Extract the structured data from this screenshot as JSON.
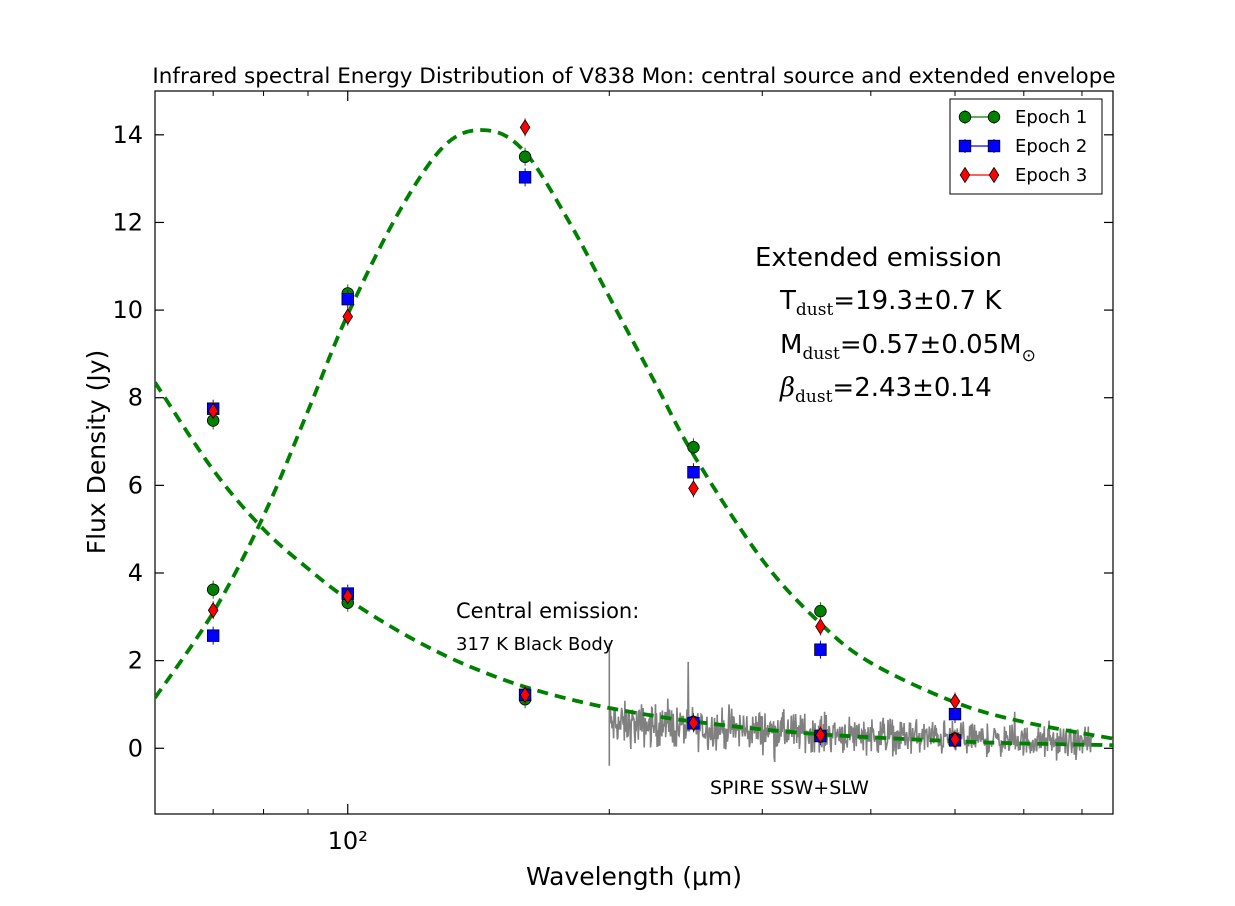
{
  "chart_data": {
    "type": "scatter",
    "title": "Infrared spectral Energy Distribution of V838 Mon: central source and extended envelope",
    "xlabel": "Wavelength (μm)",
    "ylabel": "Flux Density (Jy)",
    "xscale": "log",
    "xlim": [
      60,
      760
    ],
    "ylim": [
      -1.5,
      15
    ],
    "x_major_ticks": [
      100
    ],
    "x_major_tick_labels": [
      "10²"
    ],
    "x_minor_ticks": [
      70,
      80,
      90,
      200,
      300,
      400,
      500,
      600,
      700
    ],
    "y_ticks": [
      0,
      2,
      4,
      6,
      8,
      10,
      12,
      14
    ],
    "y_tick_labels": [
      "0",
      "2",
      "4",
      "6",
      "8",
      "10",
      "12",
      "14"
    ],
    "legend": {
      "position": "top-right",
      "entries": [
        {
          "label": "Epoch 1",
          "marker": "circle",
          "color": "#008000"
        },
        {
          "label": "Epoch 2",
          "marker": "square",
          "color": "#0000ff"
        },
        {
          "label": "Epoch 3",
          "marker": "diamond",
          "color": "#ff0000"
        }
      ]
    },
    "series": [
      {
        "name": "Epoch 1",
        "marker": "circle",
        "color": "#008000",
        "points": [
          [
            70,
            7.48
          ],
          [
            70,
            3.62
          ],
          [
            100,
            10.38
          ],
          [
            100,
            3.32
          ],
          [
            160,
            13.5
          ],
          [
            160,
            1.12
          ],
          [
            250,
            6.87
          ],
          [
            250,
            0.6
          ],
          [
            350,
            3.13
          ],
          [
            350,
            0.27
          ],
          [
            500,
            0.22
          ]
        ]
      },
      {
        "name": "Epoch 2",
        "marker": "square",
        "color": "#0000ff",
        "points": [
          [
            70,
            7.75
          ],
          [
            70,
            2.57
          ],
          [
            100,
            10.25
          ],
          [
            100,
            3.53
          ],
          [
            160,
            13.03
          ],
          [
            160,
            1.22
          ],
          [
            250,
            6.3
          ],
          [
            250,
            0.57
          ],
          [
            350,
            2.25
          ],
          [
            350,
            0.28
          ],
          [
            500,
            0.78
          ],
          [
            500,
            0.18
          ]
        ]
      },
      {
        "name": "Epoch 3",
        "marker": "diamond",
        "color": "#ff0000",
        "points": [
          [
            70,
            7.7
          ],
          [
            70,
            3.15
          ],
          [
            100,
            9.85
          ],
          [
            100,
            3.47
          ],
          [
            160,
            14.17
          ],
          [
            160,
            1.22
          ],
          [
            250,
            5.93
          ],
          [
            250,
            0.58
          ],
          [
            350,
            2.78
          ],
          [
            350,
            0.3
          ],
          [
            500,
            1.07
          ],
          [
            500,
            0.2
          ]
        ]
      }
    ],
    "fits": [
      {
        "name": "Extended emission modified black body",
        "style": "dashed",
        "color": "#008000",
        "x": [
          60,
          70,
          80,
          90,
          100,
          115,
          130,
          145,
          160,
          180,
          200,
          225,
          250,
          300,
          350,
          400,
          500,
          600,
          760
        ],
        "y": [
          1.15,
          3.1,
          5.3,
          7.7,
          9.9,
          12.3,
          13.8,
          14.1,
          13.6,
          12.0,
          10.3,
          8.4,
          6.7,
          4.3,
          2.85,
          1.95,
          1.05,
          0.6,
          0.22
        ]
      },
      {
        "name": "Central emission 317 K black body",
        "style": "dashed",
        "color": "#008000",
        "x": [
          60,
          70,
          80,
          90,
          100,
          115,
          130,
          145,
          160,
          180,
          200,
          225,
          250,
          300,
          350,
          400,
          500,
          600,
          760
        ],
        "y": [
          8.35,
          6.35,
          5.0,
          4.1,
          3.4,
          2.65,
          2.1,
          1.7,
          1.4,
          1.12,
          0.92,
          0.74,
          0.61,
          0.43,
          0.32,
          0.25,
          0.16,
          0.11,
          0.07
        ]
      }
    ],
    "spectrum": {
      "name": "SPIRE SSW+SLW",
      "color": "#808080",
      "x_range": [
        200,
        720
      ],
      "baseline_start": 0.55,
      "baseline_end": 0.1,
      "noise_amplitude_start": 0.55,
      "noise_amplitude_end": 0.35,
      "spike": [
        200,
        2.4
      ],
      "dip": [
        200,
        -0.4
      ]
    },
    "annotations": {
      "extended_header": "Extended emission",
      "t_sym": "T",
      "t_sub": "dust",
      "t_val": "=19.3±0.7 K",
      "m_sym": "M",
      "m_sub": "dust",
      "m_val": "=0.57±0.05M",
      "m_sun": "⊙",
      "b_sym": "β",
      "b_sub": "dust",
      "b_val": "=2.43±0.14",
      "central_line1": "Central emission:",
      "central_line2": "317 K Black Body",
      "spire_label": "SPIRE SSW+SLW"
    }
  }
}
